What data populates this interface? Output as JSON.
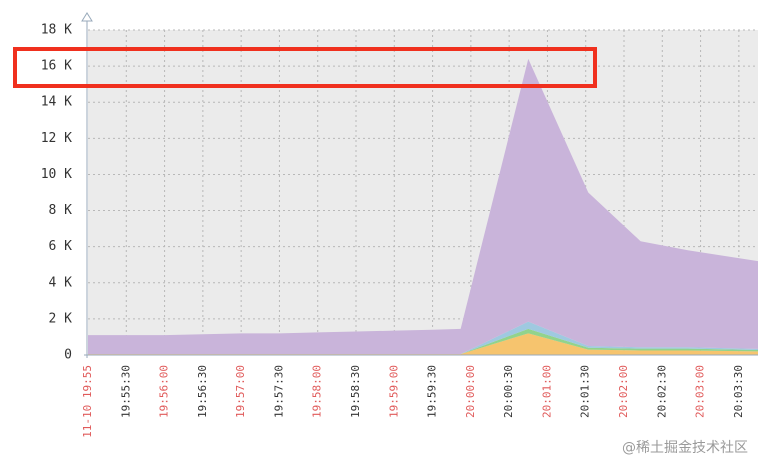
{
  "chart_data": {
    "type": "stacked-area",
    "x": [
      0,
      30,
      60,
      90,
      120,
      150,
      180,
      210,
      240,
      270,
      292,
      345,
      392,
      433,
      470,
      525
    ],
    "xlim": [
      0,
      525
    ],
    "xticks": [
      {
        "value": 0,
        "label": "11-10 19:55",
        "color": "#e05a5a"
      },
      {
        "value": 30,
        "label": "19:55:30",
        "color": "#333333"
      },
      {
        "value": 60,
        "label": "19:56:00",
        "color": "#e05a5a"
      },
      {
        "value": 90,
        "label": "19:56:30",
        "color": "#333333"
      },
      {
        "value": 120,
        "label": "19:57:00",
        "color": "#e05a5a"
      },
      {
        "value": 150,
        "label": "19:57:30",
        "color": "#333333"
      },
      {
        "value": 180,
        "label": "19:58:00",
        "color": "#e05a5a"
      },
      {
        "value": 210,
        "label": "19:58:30",
        "color": "#333333"
      },
      {
        "value": 240,
        "label": "19:59:00",
        "color": "#e05a5a"
      },
      {
        "value": 270,
        "label": "19:59:30",
        "color": "#333333"
      },
      {
        "value": 300,
        "label": "20:00:00",
        "color": "#e05a5a"
      },
      {
        "value": 330,
        "label": "20:00:30",
        "color": "#333333"
      },
      {
        "value": 360,
        "label": "20:01:00",
        "color": "#e05a5a"
      },
      {
        "value": 390,
        "label": "20:01:30",
        "color": "#333333"
      },
      {
        "value": 420,
        "label": "20:02:00",
        "color": "#e05a5a"
      },
      {
        "value": 450,
        "label": "20:02:30",
        "color": "#333333"
      },
      {
        "value": 480,
        "label": "20:03:00",
        "color": "#e05a5a"
      },
      {
        "value": 510,
        "label": "20:03:30",
        "color": "#333333"
      }
    ],
    "ylim": [
      0,
      18000
    ],
    "yticks": [
      0,
      {
        "value": 2000,
        "label": "2 K"
      },
      {
        "value": 4000,
        "label": "4 K"
      },
      {
        "value": 6000,
        "label": "6 K"
      },
      {
        "value": 8000,
        "label": "8 K"
      },
      {
        "value": 10000,
        "label": "10 K"
      },
      {
        "value": 12000,
        "label": "12 K"
      },
      {
        "value": 14000,
        "label": "14 K"
      },
      {
        "value": 16000,
        "label": "16 K"
      },
      {
        "value": 18000,
        "label": "18 K"
      }
    ],
    "grid": true,
    "series": [
      {
        "color": "#f6c46e",
        "values": [
          50,
          50,
          50,
          50,
          50,
          50,
          50,
          50,
          50,
          50,
          50,
          1200,
          300,
          250,
          250,
          200
        ]
      },
      {
        "color": "#92d38c",
        "values": [
          0,
          0,
          0,
          0,
          0,
          0,
          0,
          0,
          0,
          0,
          0,
          250,
          100,
          100,
          100,
          80
        ]
      },
      {
        "color": "#9fc9e0",
        "values": [
          0,
          0,
          0,
          0,
          0,
          0,
          0,
          0,
          0,
          0,
          0,
          400,
          100,
          80,
          80,
          60
        ]
      },
      {
        "color": "#c9b4da",
        "values": [
          1050,
          1050,
          1050,
          1100,
          1150,
          1150,
          1200,
          1250,
          1300,
          1350,
          1400,
          14550,
          8500,
          5870,
          5370,
          4860
        ]
      }
    ],
    "watermark": "@稀土掘金技术社区"
  }
}
